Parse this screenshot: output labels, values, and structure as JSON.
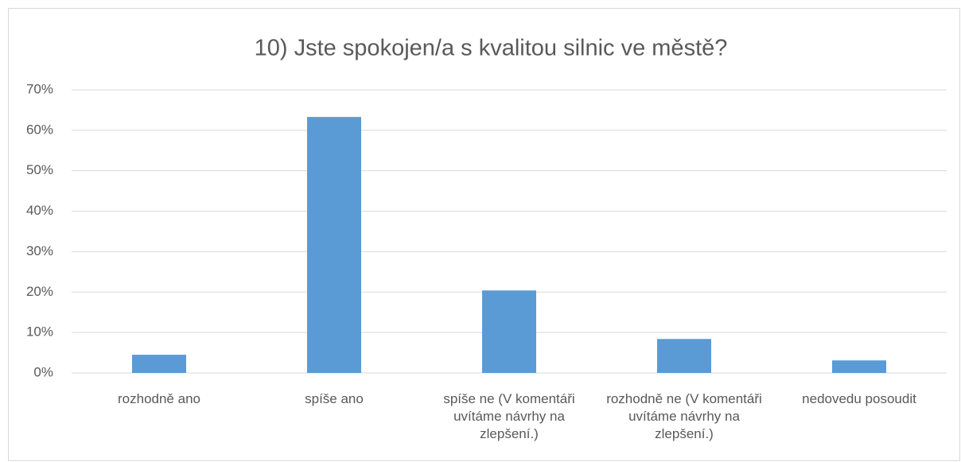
{
  "chart_data": {
    "type": "bar",
    "title": "10) Jste spokojen/a s kvalitou silnic ve městě?",
    "categories": [
      "rozhodně ano",
      "spíše ano",
      "spíše ne (V komentáři uvítáme návrhy na zlepšení.)",
      "rozhodně ne (V komentáři uvítáme návrhy na zlepšení.)",
      "nedovedu posoudit"
    ],
    "values": [
      4.5,
      63.3,
      20.4,
      8.4,
      3.1
    ],
    "color": "#5b9bd5",
    "ylim": [
      0,
      70
    ],
    "yticks": [
      {
        "value": 0,
        "label": "0%"
      },
      {
        "value": 10,
        "label": "10%"
      },
      {
        "value": 20,
        "label": "20%"
      },
      {
        "value": 30,
        "label": "30%"
      },
      {
        "value": 40,
        "label": "40%"
      },
      {
        "value": 50,
        "label": "50%"
      },
      {
        "value": 60,
        "label": "60%"
      },
      {
        "value": 70,
        "label": "70%"
      }
    ],
    "grid": true
  }
}
